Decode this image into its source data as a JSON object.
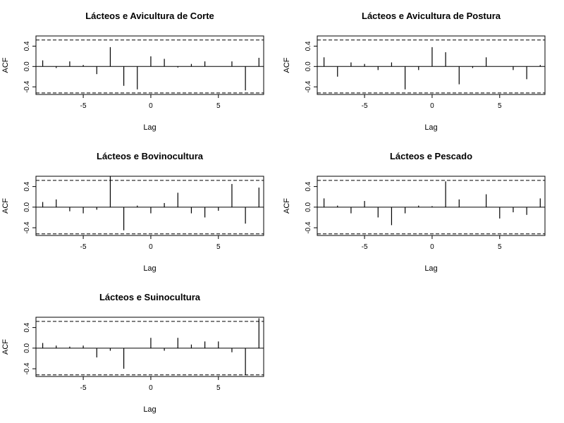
{
  "chart_data": [
    {
      "type": "bar",
      "title": "Lácteos e Avicultura de Corte",
      "xlabel": "Lag",
      "ylabel": "ACF",
      "xlim": [
        -8,
        8
      ],
      "ylim": [
        -0.55,
        0.6
      ],
      "ci": 0.52,
      "x_ticks": [
        -5,
        0,
        5
      ],
      "y_ticks": [
        -0.4,
        0.0,
        0.4
      ],
      "x_tick_labels": [
        "-5",
        "0",
        "5"
      ],
      "y_tick_labels": [
        "-0.4",
        "0.0",
        "0.4"
      ],
      "lags": [
        -8,
        -7,
        -6,
        -5,
        -4,
        -3,
        -2,
        -1,
        0,
        1,
        2,
        3,
        4,
        5,
        6,
        7,
        8
      ],
      "values": [
        0.12,
        -0.03,
        0.1,
        0.03,
        -0.15,
        0.38,
        -0.38,
        -0.45,
        0.2,
        0.15,
        -0.02,
        0.05,
        0.1,
        0.0,
        0.1,
        -0.47,
        0.17
      ]
    },
    {
      "type": "bar",
      "title": "Lácteos e Avicultura de Postura",
      "xlabel": "Lag",
      "ylabel": "ACF",
      "xlim": [
        -8,
        8
      ],
      "ylim": [
        -0.55,
        0.6
      ],
      "ci": 0.52,
      "x_ticks": [
        -5,
        0,
        5
      ],
      "y_ticks": [
        -0.4,
        0.0,
        0.4
      ],
      "x_tick_labels": [
        "-5",
        "0",
        "5"
      ],
      "y_tick_labels": [
        "-0.4",
        "0.0",
        "0.4"
      ],
      "lags": [
        -8,
        -7,
        -6,
        -5,
        -4,
        -3,
        -2,
        -1,
        0,
        1,
        2,
        3,
        4,
        5,
        6,
        7,
        8
      ],
      "values": [
        0.18,
        -0.2,
        0.08,
        0.05,
        -0.07,
        0.08,
        -0.45,
        -0.07,
        0.38,
        0.28,
        -0.35,
        -0.03,
        0.18,
        0.0,
        -0.07,
        -0.25,
        0.03
      ]
    },
    {
      "type": "bar",
      "title": "Lácteos e Bovinocultura",
      "xlabel": "Lag",
      "ylabel": "ACF",
      "xlim": [
        -8,
        8
      ],
      "ylim": [
        -0.55,
        0.6
      ],
      "ci": 0.52,
      "x_ticks": [
        -5,
        0,
        5
      ],
      "y_ticks": [
        -0.4,
        0.0,
        0.4
      ],
      "x_tick_labels": [
        "-5",
        "0",
        "5"
      ],
      "y_tick_labels": [
        "-0.4",
        "0.0",
        "0.4"
      ],
      "lags": [
        -8,
        -7,
        -6,
        -5,
        -4,
        -3,
        -2,
        -1,
        0,
        1,
        2,
        3,
        4,
        5,
        6,
        7,
        8
      ],
      "values": [
        0.1,
        0.15,
        -0.08,
        -0.12,
        -0.05,
        0.6,
        -0.45,
        0.03,
        -0.12,
        0.08,
        0.28,
        -0.12,
        -0.2,
        -0.07,
        0.45,
        -0.32,
        0.38
      ]
    },
    {
      "type": "bar",
      "title": "Lácteos e Pescado",
      "xlabel": "Lag",
      "ylabel": "ACF",
      "xlim": [
        -8,
        8
      ],
      "ylim": [
        -0.55,
        0.6
      ],
      "ci": 0.52,
      "x_ticks": [
        -5,
        0,
        5
      ],
      "y_ticks": [
        -0.4,
        0.0,
        0.4
      ],
      "x_tick_labels": [
        "-5",
        "0",
        "5"
      ],
      "y_tick_labels": [
        "-0.4",
        "0.0",
        "0.4"
      ],
      "lags": [
        -8,
        -7,
        -6,
        -5,
        -4,
        -3,
        -2,
        -1,
        0,
        1,
        2,
        3,
        4,
        5,
        6,
        7,
        8
      ],
      "values": [
        0.17,
        0.03,
        -0.12,
        0.12,
        -0.2,
        -0.35,
        -0.12,
        0.03,
        0.02,
        0.5,
        0.15,
        0.0,
        0.25,
        -0.22,
        -0.1,
        -0.15,
        0.17
      ]
    },
    {
      "type": "bar",
      "title": "Lácteos e Suinocultura",
      "xlabel": "Lag",
      "ylabel": "ACF",
      "xlim": [
        -8,
        8
      ],
      "ylim": [
        -0.55,
        0.6
      ],
      "ci": 0.52,
      "x_ticks": [
        -5,
        0,
        5
      ],
      "y_ticks": [
        -0.4,
        0.0,
        0.4
      ],
      "x_tick_labels": [
        "-5",
        "0",
        "5"
      ],
      "y_tick_labels": [
        "-0.4",
        "0.0",
        "0.4"
      ],
      "lags": [
        -8,
        -7,
        -6,
        -5,
        -4,
        -3,
        -2,
        -1,
        0,
        1,
        2,
        3,
        4,
        5,
        6,
        7,
        8
      ],
      "values": [
        0.1,
        0.05,
        0.03,
        0.05,
        -0.18,
        -0.05,
        -0.4,
        0.0,
        0.2,
        -0.05,
        0.2,
        0.07,
        0.13,
        0.13,
        -0.08,
        -0.52,
        0.58
      ]
    }
  ]
}
